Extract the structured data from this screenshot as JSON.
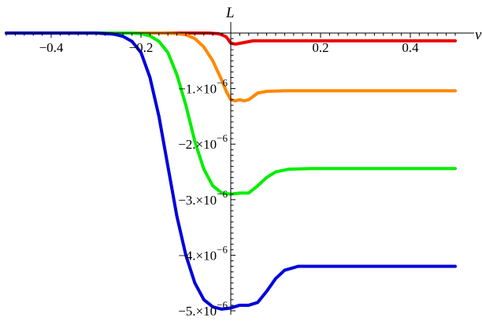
{
  "chart_data": {
    "type": "line",
    "title": "",
    "xlabel": "v",
    "ylabel": "L",
    "xlim": [
      -0.5,
      0.5
    ],
    "ylim": [
      -5.05e-06,
      5e-08
    ],
    "grid": false,
    "legend": "none",
    "x_ticks": [
      {
        "value": -0.4,
        "label": "−0.4"
      },
      {
        "value": -0.2,
        "label": "−0.2"
      },
      {
        "value": 0.2,
        "label": "0.2"
      },
      {
        "value": 0.4,
        "label": "0.4"
      }
    ],
    "y_ticks": [
      {
        "value": -1e-06,
        "mant": "−1.×10",
        "exp": "−6"
      },
      {
        "value": -2e-06,
        "mant": "−2.×10",
        "exp": "−6"
      },
      {
        "value": -3e-06,
        "mant": "−3.×10",
        "exp": "−6"
      },
      {
        "value": -4e-06,
        "mant": "−4.×10",
        "exp": "−6"
      },
      {
        "value": -5e-06,
        "mant": "−5.×10",
        "exp": "−6"
      }
    ],
    "series": [
      {
        "color": "#ee0000",
        "points": [
          [
            -0.5,
            0
          ],
          [
            -0.05,
            0
          ],
          [
            -0.03,
            -1e-08
          ],
          [
            -0.02,
            -3e-08
          ],
          [
            -0.01,
            -7e-08
          ],
          [
            0,
            -1.8e-07
          ],
          [
            0.01,
            -2e-07
          ],
          [
            0.03,
            -1.7e-07
          ],
          [
            0.05,
            -1.4e-07
          ],
          [
            0.1,
            -1.4e-07
          ],
          [
            0.5,
            -1.4e-07
          ]
        ]
      },
      {
        "color": "#ff8800",
        "points": [
          [
            -0.5,
            0
          ],
          [
            -0.15,
            0
          ],
          [
            -0.12,
            -1e-08
          ],
          [
            -0.1,
            -3e-08
          ],
          [
            -0.08,
            -1e-07
          ],
          [
            -0.06,
            -2.5e-07
          ],
          [
            -0.04,
            -5e-07
          ],
          [
            -0.02,
            -8.5e-07
          ],
          [
            -0.01,
            -1.05e-06
          ],
          [
            0,
            -1.2e-06
          ],
          [
            0.01,
            -1.22e-06
          ],
          [
            0.02,
            -1.2e-06
          ],
          [
            0.03,
            -1.22e-06
          ],
          [
            0.04,
            -1.2e-06
          ],
          [
            0.05,
            -1.14e-06
          ],
          [
            0.06,
            -1.08e-06
          ],
          [
            0.08,
            -1.05e-06
          ],
          [
            0.12,
            -1.04e-06
          ],
          [
            0.5,
            -1.04e-06
          ]
        ]
      },
      {
        "color": "#00ee00",
        "points": [
          [
            -0.5,
            0
          ],
          [
            -0.22,
            0
          ],
          [
            -0.2,
            -1e-08
          ],
          [
            -0.18,
            -5e-08
          ],
          [
            -0.16,
            -1.5e-07
          ],
          [
            -0.14,
            -3.5e-07
          ],
          [
            -0.12,
            -7.5e-07
          ],
          [
            -0.1,
            -1.3e-06
          ],
          [
            -0.08,
            -1.95e-06
          ],
          [
            -0.06,
            -2.45e-06
          ],
          [
            -0.04,
            -2.75e-06
          ],
          [
            -0.02,
            -2.88e-06
          ],
          [
            0,
            -2.9e-06
          ],
          [
            0.02,
            -2.88e-06
          ],
          [
            0.04,
            -2.88e-06
          ],
          [
            0.06,
            -2.75e-06
          ],
          [
            0.08,
            -2.6e-06
          ],
          [
            0.1,
            -2.5e-06
          ],
          [
            0.13,
            -2.45e-06
          ],
          [
            0.18,
            -2.44e-06
          ],
          [
            0.5,
            -2.44e-06
          ]
        ]
      },
      {
        "color": "#0000dd",
        "points": [
          [
            -0.5,
            0
          ],
          [
            -0.3,
            0
          ],
          [
            -0.26,
            -2e-08
          ],
          [
            -0.24,
            -6e-08
          ],
          [
            -0.22,
            -1.5e-07
          ],
          [
            -0.2,
            -3.5e-07
          ],
          [
            -0.18,
            -8e-07
          ],
          [
            -0.16,
            -1.5e-06
          ],
          [
            -0.14,
            -2.4e-06
          ],
          [
            -0.12,
            -3.3e-06
          ],
          [
            -0.1,
            -4e-06
          ],
          [
            -0.08,
            -4.5e-06
          ],
          [
            -0.06,
            -4.8e-06
          ],
          [
            -0.04,
            -4.93e-06
          ],
          [
            -0.02,
            -4.97e-06
          ],
          [
            0,
            -4.95e-06
          ],
          [
            0.02,
            -4.9e-06
          ],
          [
            0.04,
            -4.9e-06
          ],
          [
            0.06,
            -4.85e-06
          ],
          [
            0.08,
            -4.65e-06
          ],
          [
            0.1,
            -4.42e-06
          ],
          [
            0.12,
            -4.27e-06
          ],
          [
            0.15,
            -4.2e-06
          ],
          [
            0.2,
            -4.2e-06
          ],
          [
            0.5,
            -4.2e-06
          ]
        ]
      }
    ]
  }
}
